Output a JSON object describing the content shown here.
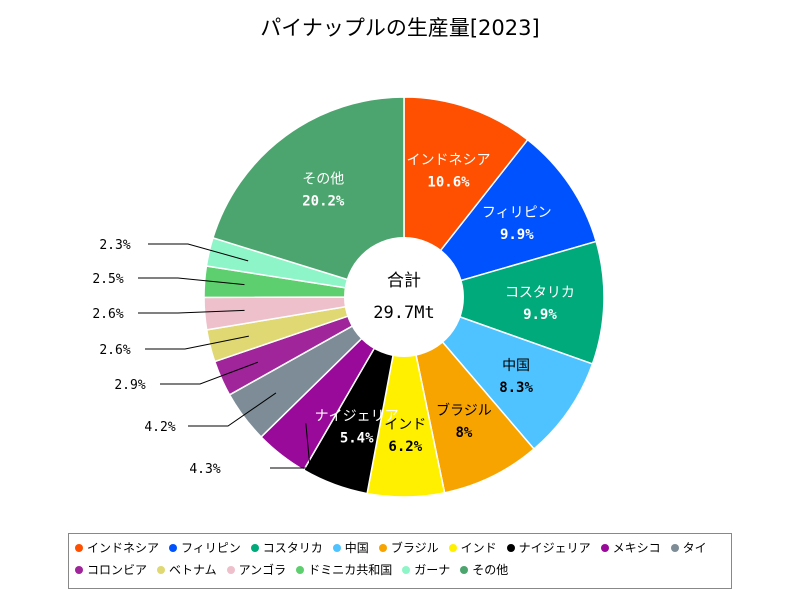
{
  "title": "パイナップルの生産量[2023]",
  "center": {
    "label": "合計",
    "total": "29.7Mt"
  },
  "chart_data": {
    "type": "pie",
    "donut": true,
    "title": "パイナップルの生産量[2023]",
    "total_label": "合計",
    "total": "29.7Mt",
    "legend_position": "bottom",
    "slices": [
      {
        "name": "インドネシア",
        "value": 10.6,
        "label": "10.6%",
        "color": "#fe5000"
      },
      {
        "name": "フィリピン",
        "value": 9.9,
        "label": "9.9%",
        "color": "#0052ff"
      },
      {
        "name": "コスタリカ",
        "value": 9.9,
        "label": "9.9%",
        "color": "#00aa7a"
      },
      {
        "name": "中国",
        "value": 8.3,
        "label": "8.3%",
        "color": "#4fc3ff"
      },
      {
        "name": "ブラジル",
        "value": 8.0,
        "label": "8%",
        "color": "#f7a400"
      },
      {
        "name": "インド",
        "value": 6.2,
        "label": "6.2%",
        "color": "#fff000"
      },
      {
        "name": "ナイジェリア",
        "value": 5.4,
        "label": "5.4%",
        "color": "#000000"
      },
      {
        "name": "メキシコ",
        "value": 4.3,
        "label": "4.3%",
        "color": "#9a0a9a"
      },
      {
        "name": "タイ",
        "value": 4.2,
        "label": "4.2%",
        "color": "#7d8c96"
      },
      {
        "name": "コロンビア",
        "value": 2.9,
        "label": "2.9%",
        "color": "#a0249a"
      },
      {
        "name": "ベトナム",
        "value": 2.6,
        "label": "2.6%",
        "color": "#e0d873"
      },
      {
        "name": "アンゴラ",
        "value": 2.6,
        "label": "2.6%",
        "color": "#eec0cc"
      },
      {
        "name": "ドミニカ共和国",
        "value": 2.5,
        "label": "2.5%",
        "color": "#5ecf6e"
      },
      {
        "name": "ガーナ",
        "value": 2.3,
        "label": "2.3%",
        "color": "#8ef5c8"
      },
      {
        "name": "その他",
        "value": 20.2,
        "label": "20.2%",
        "color": "#4ca56e"
      }
    ]
  }
}
